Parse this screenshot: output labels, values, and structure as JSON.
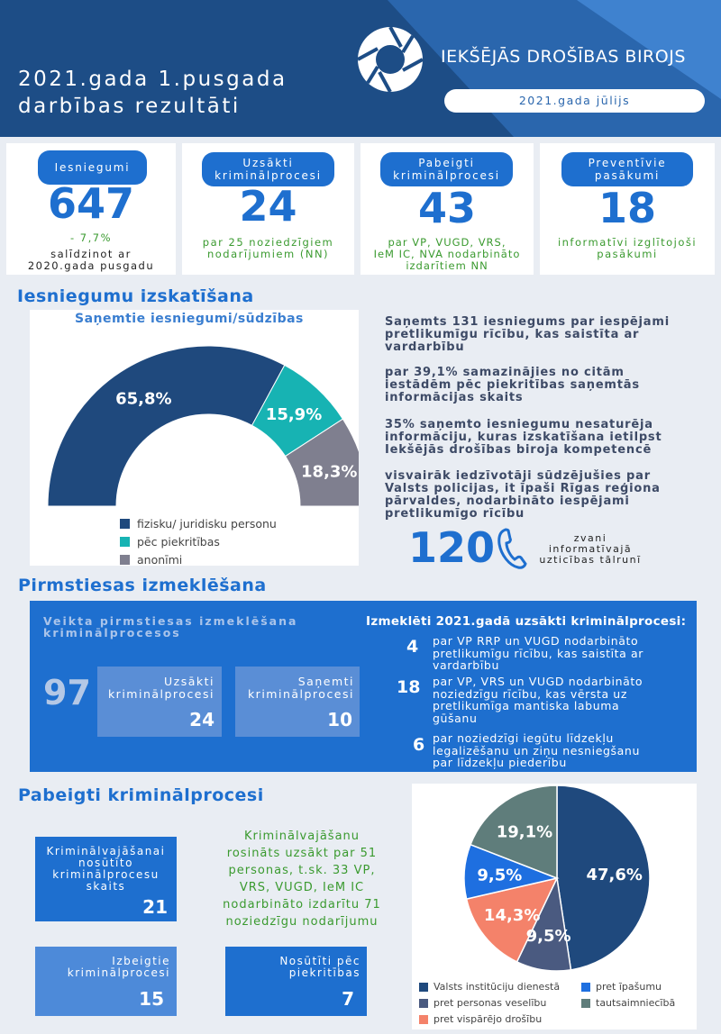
{
  "header": {
    "title_line1": "2021.gada 1.pusgada",
    "title_line2": "darbības rezultāti",
    "org": "IEKŠĒJĀS DROŠĪBAS BIROJS",
    "date": "2021.gada jūlijs"
  },
  "cards": [
    {
      "label": "Iesniegumi",
      "value": "647",
      "sub1": "- 7,7%",
      "sub2": "salīdzinot ar",
      "sub3": "2020.gada pusgadu"
    },
    {
      "label1": "Uzsākti",
      "label2": "kriminālprocesi",
      "value": "24",
      "sub1": "par 25 noziedzīgiem",
      "sub2": "nodarījumiem (NN)"
    },
    {
      "label1": "Pabeigti",
      "label2": "kriminālprocesi",
      "value": "43",
      "sub1": "par VP, VUGD, VRS,",
      "sub2": "IeM IC, NVA nodarbināto",
      "sub3": "izdarītiem NN"
    },
    {
      "label1": "Preventīvie",
      "label2": "pasākumi",
      "value": "18",
      "sub1": "informatīvi izglītojoši",
      "sub2": "pasākumi"
    }
  ],
  "section1": {
    "title": "Iesniegumu izskatīšana",
    "notes": [
      [
        "Saņemts 131 iesniegums par iespējami",
        "pretlikumīgu rīcību, kas saistīta ar",
        "vardarbību"
      ],
      [
        "par 39,1% samazinājies no citām",
        "iestādēm pēc piekritības saņemtās",
        "informācijas skaits"
      ],
      [
        "35% saņemto iesniegumu nesaturēja",
        "informāciju, kuras izskatīšana ietilpst",
        "Iekšējās drošības biroja kompetencē"
      ],
      [
        "visvairāk iedzīvotāji sūdzējušies par",
        "Valsts policijas, it īpaši Rīgas reģiona",
        "pārvaldes, nodarbināto iespējami",
        "pretlikumīgo rīcību"
      ]
    ],
    "calls_value": "120",
    "calls_text1": "zvani",
    "calls_text2": "informatīvajā",
    "calls_text3": "uzticības tālrunī"
  },
  "section2": {
    "title": "Pirmstiesas izmeklēšana",
    "left_title1": "Veikta pirmstiesas izmeklēšana",
    "left_title2": "kriminālprocesos",
    "total": "97",
    "box1_l1": "Uzsākti",
    "box1_l2": "kriminālprocesi",
    "box1_v": "24",
    "box2_l1": "Saņemti",
    "box2_l2": "kriminālprocesi",
    "box2_v": "10",
    "right_title": "Izmeklēti 2021.gadā uzsākti kriminālprocesi:",
    "items": [
      {
        "num": "4",
        "lines": [
          "par VP RRP un VUGD nodarbināto",
          "pretlikumīgu rīcību, kas saistīta ar",
          "vardarbību"
        ]
      },
      {
        "num": "18",
        "lines": [
          "par VP, VRS un VUGD nodarbināto",
          "noziedzīgu rīcību, kas vērsta uz",
          "pretlikumīga mantiska labuma",
          "gūšanu"
        ]
      },
      {
        "num": "6",
        "lines": [
          "par noziedzīgi iegūtu līdzekļu",
          "legalizēšanu un ziņu nesniegšanu",
          "par līdzekļu piederību"
        ]
      }
    ]
  },
  "section3": {
    "title": "Pabeigti kriminālprocesi",
    "box1": {
      "l1": "Kriminālvajāšanai",
      "l2": "nosūtīto",
      "l3": "kriminālprocesu",
      "l4": "skaits",
      "v": "21"
    },
    "green_text": [
      "Kriminālvajāšanu",
      "rosināts uzsākt par 51",
      "personas, t.sk. 33 VP,",
      "VRS, VUGD, IeM IC",
      "nodarbināto izdarītu 71",
      "noziedzīgu nodarījumu"
    ],
    "box2": {
      "l1": "Izbeigtie",
      "l2": "kriminālprocesi",
      "v": "15"
    },
    "box3": {
      "l1": "Nosūtīti pēc",
      "l2": "piekritības",
      "v": "7"
    }
  },
  "chart_data": [
    {
      "type": "pie",
      "title": "Saņemtie iesniegumi/sūdzības",
      "categories": [
        "fizisku/ juridisku personu",
        "pēc piekritības",
        "anonīmi"
      ],
      "values": [
        65.8,
        15.9,
        18.3
      ],
      "labels": [
        "65,8%",
        "15,9%",
        "18,3%"
      ],
      "colors": [
        "#1f497d",
        "#17b3b3",
        "#7f7f8f"
      ],
      "legend": "bottom-left"
    },
    {
      "type": "pie",
      "categories": [
        "Valsts institūciju dienestā",
        "pret personas veselību",
        "pret vispārējo drošību",
        "pret īpašumu",
        "tautsaimniecībā"
      ],
      "values": [
        47.6,
        9.5,
        14.3,
        9.5,
        19.1
      ],
      "labels": [
        "47,6%",
        "9,5%",
        "14,3%",
        "9,5%",
        "19,1%"
      ],
      "colors": [
        "#1f497d",
        "#4a5a80",
        "#f4826a",
        "#1e6fe0",
        "#5f7d7b"
      ],
      "legend": "bottom"
    }
  ]
}
